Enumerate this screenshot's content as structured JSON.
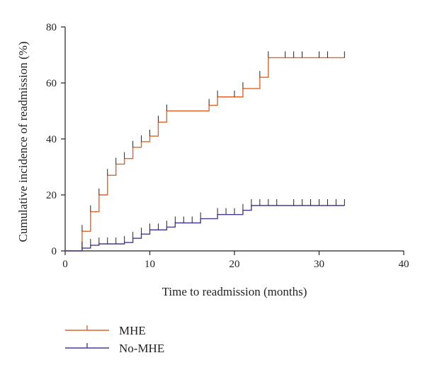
{
  "chart_data": {
    "type": "line",
    "subtype": "kaplan-meier-step-cumulative-incidence",
    "xlabel": "Time to readmission (months)",
    "ylabel": "Cumulative incidence of readmission (%)",
    "xlim": [
      0,
      40
    ],
    "ylim": [
      0,
      80
    ],
    "xticks": [
      0,
      10,
      20,
      30,
      40
    ],
    "yticks": [
      0,
      20,
      40,
      60,
      80
    ],
    "grid": false,
    "legend_position": "bottom-left",
    "series": [
      {
        "name": "MHE",
        "color": "#e0632a",
        "steps": [
          [
            0,
            0
          ],
          [
            2,
            7
          ],
          [
            3,
            14
          ],
          [
            4,
            20
          ],
          [
            5,
            27
          ],
          [
            6,
            31
          ],
          [
            7,
            33
          ],
          [
            8,
            37
          ],
          [
            9,
            39
          ],
          [
            10,
            41
          ],
          [
            11,
            46
          ],
          [
            12,
            50
          ],
          [
            17,
            52
          ],
          [
            18,
            55
          ],
          [
            21,
            58
          ],
          [
            23,
            62
          ],
          [
            24,
            69
          ],
          [
            33,
            69
          ]
        ],
        "censor_times": [
          2,
          3,
          4,
          5,
          6,
          7,
          8,
          9,
          10,
          11,
          12,
          17,
          18,
          20,
          21,
          23,
          24,
          26,
          27,
          28,
          30,
          31,
          33
        ]
      },
      {
        "name": "No-MHE",
        "color": "#4a3a8c",
        "steps": [
          [
            0,
            0
          ],
          [
            2,
            1
          ],
          [
            3,
            2
          ],
          [
            4,
            2.5
          ],
          [
            7,
            3
          ],
          [
            8,
            4.5
          ],
          [
            9,
            6
          ],
          [
            10,
            7.5
          ],
          [
            12,
            8.5
          ],
          [
            13,
            10
          ],
          [
            16,
            11.5
          ],
          [
            18,
            13
          ],
          [
            21,
            14.5
          ],
          [
            22,
            16.2
          ],
          [
            33,
            16.2
          ]
        ],
        "censor_times": [
          2,
          3,
          4,
          5,
          6,
          7,
          8,
          9,
          10,
          11,
          12,
          13,
          14,
          15,
          16,
          18,
          19,
          20,
          21,
          22,
          23,
          24,
          25,
          27,
          28,
          29,
          30,
          31,
          32,
          33
        ]
      }
    ]
  }
}
